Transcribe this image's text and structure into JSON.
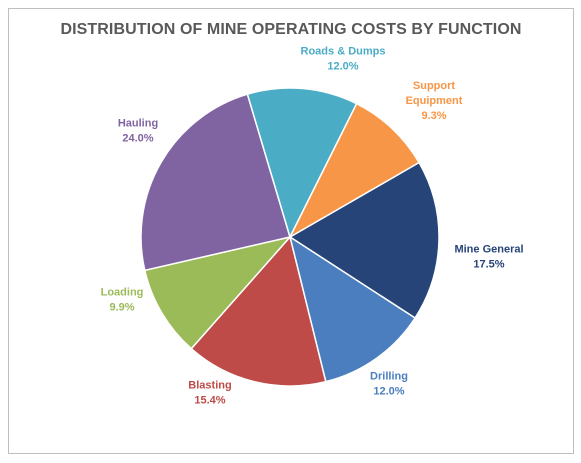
{
  "chart_data": {
    "type": "pie",
    "title": "DISTRIBUTION OF MINE OPERATING COSTS BY FUNCTION",
    "slices": [
      {
        "label": "Mine General",
        "value_label": "17.5%",
        "value": 17.5,
        "color": "#264478"
      },
      {
        "label": "Drilling",
        "value_label": "12.0%",
        "value": 12.0,
        "color": "#4a7ebf"
      },
      {
        "label": "Blasting",
        "value_label": "15.4%",
        "value": 15.4,
        "color": "#be4b48"
      },
      {
        "label": "Loading",
        "value_label": "9.9%",
        "value": 9.9,
        "color": "#9bbb59"
      },
      {
        "label": "Hauling",
        "value_label": "24.0%",
        "value": 24.0,
        "color": "#8064a2"
      },
      {
        "label": "Roads & Dumps",
        "value_label": "12.0%",
        "value": 12.0,
        "color": "#4bacc6"
      },
      {
        "label": "Support Equipment",
        "value_label": "9.3%",
        "value": 9.3,
        "color": "#f79646"
      }
    ],
    "start_label": "Mine General",
    "direction": "clockwise",
    "data_labels": "outside, colored to match slice",
    "legend": "none"
  }
}
